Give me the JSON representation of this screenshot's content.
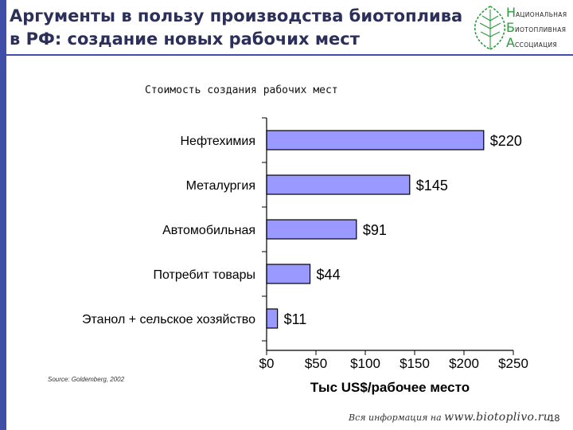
{
  "slide": {
    "title_line1": "Аргументы в пользу производства биотоплива",
    "title_line2": "в РФ: создание новых рабочих мест",
    "source_note": "Source: Goldemberg, 2002",
    "footer_prefix": "Вся информация на",
    "footer_site": "www.biotoplivo.ru",
    "page_number": "18",
    "accent_color": "#3f4fa8",
    "logo": {
      "line1_initial": "Н",
      "line1_rest": "АЦИОНАЛЬНАЯ",
      "line2_initial": "Б",
      "line2_rest": "ИОТОПЛИВНАЯ",
      "line3_initial": "А",
      "line3_rest": "ССОЦИАЦИЯ",
      "icon": "leaf-icon",
      "color": "#2b9a3c"
    }
  },
  "chart_data": {
    "type": "bar",
    "orientation": "horizontal",
    "title": "Стоимость создания рабочих мест",
    "xlabel": "Тыс US$/рабочее место",
    "ylabel": "",
    "categories": [
      "Нефтехимия",
      "Металургия",
      "Автомобильная",
      "Потребит товары",
      "Этанол + сельское хозяйство"
    ],
    "values": [
      220,
      145,
      91,
      44,
      11
    ],
    "data_labels": [
      "$220",
      "$145",
      "$91",
      "$44",
      "$11"
    ],
    "xlim": [
      0,
      250
    ],
    "xticks": [
      0,
      50,
      100,
      150,
      200,
      250
    ],
    "xtick_labels": [
      "$0",
      "$50",
      "$100",
      "$150",
      "$200",
      "$250"
    ],
    "bar_color": "#9999ff",
    "bar_edge_color": "#000000",
    "grid": false,
    "legend": "none"
  }
}
